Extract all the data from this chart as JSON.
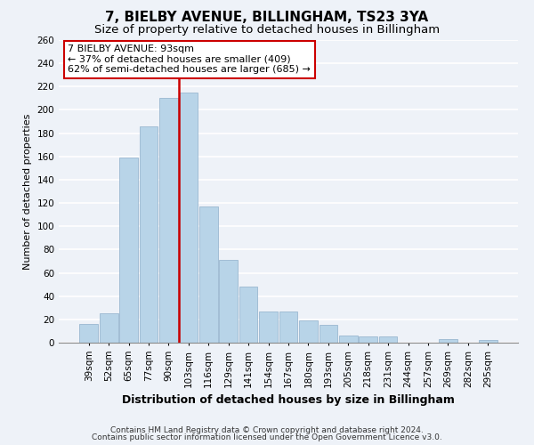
{
  "title": "7, BIELBY AVENUE, BILLINGHAM, TS23 3YA",
  "subtitle": "Size of property relative to detached houses in Billingham",
  "xlabel": "Distribution of detached houses by size in Billingham",
  "ylabel": "Number of detached properties",
  "bar_labels": [
    "39sqm",
    "52sqm",
    "65sqm",
    "77sqm",
    "90sqm",
    "103sqm",
    "116sqm",
    "129sqm",
    "141sqm",
    "154sqm",
    "167sqm",
    "180sqm",
    "193sqm",
    "205sqm",
    "218sqm",
    "231sqm",
    "244sqm",
    "257sqm",
    "269sqm",
    "282sqm",
    "295sqm"
  ],
  "bar_values": [
    16,
    25,
    159,
    186,
    210,
    215,
    117,
    71,
    48,
    27,
    27,
    19,
    15,
    6,
    5,
    5,
    0,
    0,
    3,
    0,
    2
  ],
  "bar_color": "#b8d4e8",
  "bar_edge_color": "#9ab8d0",
  "vline_color": "#cc0000",
  "vline_x": 4.5,
  "ylim": [
    0,
    260
  ],
  "yticks": [
    0,
    20,
    40,
    60,
    80,
    100,
    120,
    140,
    160,
    180,
    200,
    220,
    240,
    260
  ],
  "annotation_title": "7 BIELBY AVENUE: 93sqm",
  "annotation_line1": "← 37% of detached houses are smaller (409)",
  "annotation_line2": "62% of semi-detached houses are larger (685) →",
  "annotation_box_color": "#ffffff",
  "annotation_box_edge": "#cc0000",
  "footer1": "Contains HM Land Registry data © Crown copyright and database right 2024.",
  "footer2": "Contains public sector information licensed under the Open Government Licence v3.0.",
  "title_fontsize": 11,
  "subtitle_fontsize": 9.5,
  "xlabel_fontsize": 9,
  "ylabel_fontsize": 8,
  "tick_fontsize": 7.5,
  "ann_fontsize": 8,
  "footer_fontsize": 6.5,
  "bg_color": "#eef2f8",
  "plot_bg_color": "#eef2f8"
}
